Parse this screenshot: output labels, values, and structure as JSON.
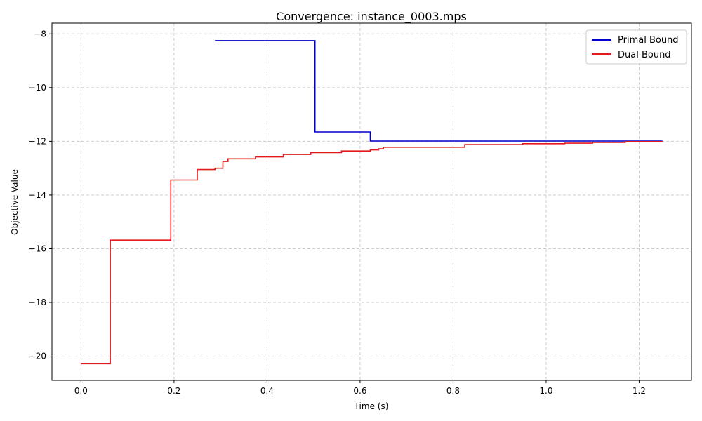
{
  "chart_data": {
    "type": "line",
    "step": true,
    "title": "Convergence: instance_0003.mps",
    "xlabel": "Time (s)",
    "ylabel": "Objective Value",
    "xlim": [
      -0.0625,
      1.3125
    ],
    "ylim": [
      -20.9,
      -7.6
    ],
    "x_ticks": [
      0.0,
      0.2,
      0.4,
      0.6,
      0.8,
      1.0,
      1.2
    ],
    "x_tick_labels": [
      "0.0",
      "0.2",
      "0.4",
      "0.6",
      "0.8",
      "1.0",
      "1.2"
    ],
    "y_ticks": [
      -20,
      -18,
      -16,
      -14,
      -12,
      -10,
      -8
    ],
    "y_tick_labels": [
      "−20",
      "−18",
      "−16",
      "−14",
      "−12",
      "−10",
      "−8"
    ],
    "grid": true,
    "legend_position": "top-right",
    "series": [
      {
        "name": "Primal Bound",
        "color": "#0000cc",
        "x": [
          0.288,
          0.503,
          0.622,
          1.25
        ],
        "y": [
          -8.25,
          -11.65,
          -11.99,
          -11.99
        ]
      },
      {
        "name": "Dual Bound",
        "color": "#e31a1c",
        "x": [
          0.0,
          0.063,
          0.193,
          0.25,
          0.288,
          0.305,
          0.316,
          0.375,
          0.435,
          0.494,
          0.56,
          0.622,
          0.64,
          0.65,
          0.825,
          0.95,
          1.04,
          1.1,
          1.17,
          1.25
        ],
        "y": [
          -20.28,
          -15.68,
          -13.44,
          -13.05,
          -13.0,
          -12.75,
          -12.65,
          -12.58,
          -12.49,
          -12.42,
          -12.36,
          -12.32,
          -12.28,
          -12.22,
          -12.12,
          -12.09,
          -12.07,
          -12.04,
          -12.01,
          -12.0
        ]
      }
    ]
  }
}
